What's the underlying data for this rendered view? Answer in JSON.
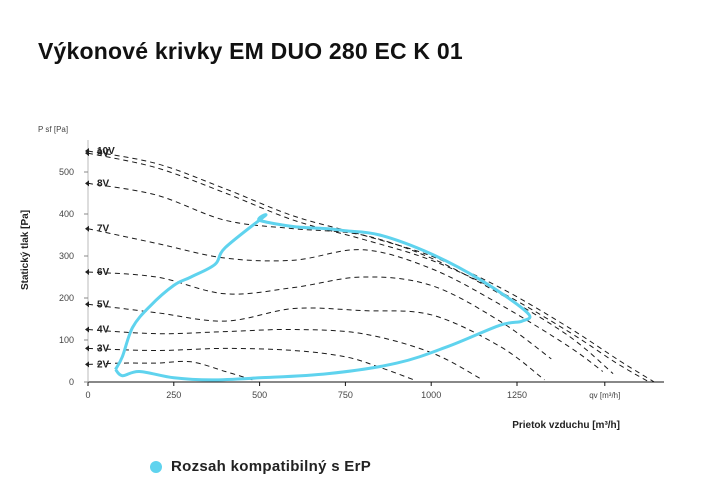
{
  "title": "Výkonové krivky EM DUO 280 EC K 01",
  "chart_data": {
    "type": "line",
    "y_unit_label": "P sf [Pa]",
    "ylabel": "Statický tlak [Pa]",
    "x_unit_label": "qv [m³/h]",
    "xlabel": "Prietok vzduchu [m³/h]",
    "xlim": [
      0,
      1700
    ],
    "ylim": [
      0,
      560
    ],
    "x_ticks": [
      0,
      250,
      500,
      750,
      1000,
      1250
    ],
    "y_ticks": [
      0,
      100,
      200,
      300,
      400,
      500
    ],
    "grid": false,
    "series": [
      {
        "name": "10V",
        "style": "dashed",
        "x": [
          0,
          200,
          400,
          600,
          800,
          1000,
          1200,
          1400,
          1550,
          1650
        ],
        "y": [
          550,
          520,
          460,
          395,
          350,
          300,
          225,
          130,
          50,
          0
        ]
      },
      {
        "name": "9V",
        "style": "dashed",
        "x": [
          0,
          200,
          400,
          600,
          800,
          1000,
          1200,
          1400,
          1540,
          1635
        ],
        "y": [
          545,
          510,
          450,
          385,
          340,
          290,
          215,
          120,
          45,
          0
        ]
      },
      {
        "name": "8V",
        "style": "dashed",
        "x": [
          0,
          200,
          400,
          600,
          800,
          1000,
          1200,
          1400,
          1530
        ],
        "y": [
          473,
          445,
          385,
          365,
          350,
          295,
          210,
          110,
          20
        ]
      },
      {
        "name": "7V",
        "style": "dashed",
        "x": [
          0,
          200,
          400,
          600,
          800,
          1000,
          1200,
          1400,
          1500
        ],
        "y": [
          365,
          330,
          295,
          290,
          315,
          270,
          185,
          85,
          25
        ]
      },
      {
        "name": "6V",
        "style": "dashed",
        "x": [
          0,
          200,
          400,
          600,
          800,
          1000,
          1200,
          1350
        ],
        "y": [
          262,
          250,
          210,
          225,
          250,
          230,
          145,
          55
        ]
      },
      {
        "name": "5V",
        "style": "dashed",
        "x": [
          0,
          200,
          400,
          600,
          800,
          1000,
          1200,
          1330
        ],
        "y": [
          185,
          165,
          145,
          175,
          170,
          160,
          85,
          5
        ]
      },
      {
        "name": "4V",
        "style": "dashed",
        "x": [
          0,
          200,
          400,
          600,
          800,
          1000,
          1150
        ],
        "y": [
          125,
          115,
          120,
          125,
          115,
          70,
          5
        ]
      },
      {
        "name": "3V",
        "style": "dashed",
        "x": [
          0,
          200,
          400,
          600,
          750,
          850,
          950
        ],
        "y": [
          80,
          75,
          80,
          75,
          60,
          35,
          5
        ]
      },
      {
        "name": "2V",
        "style": "dashed",
        "x": [
          0,
          100,
          200,
          300,
          400,
          480
        ],
        "y": [
          42,
          45,
          45,
          48,
          25,
          5
        ]
      }
    ],
    "erp_range": {
      "name": "Rozsah kompatibilný s ErP",
      "color": "#5fd3ee",
      "x": [
        80,
        100,
        150,
        250,
        360,
        500,
        700,
        900,
        1050,
        1200,
        1265,
        1280,
        1150,
        1000,
        850,
        750,
        700,
        600,
        500,
        515,
        400,
        370,
        300,
        250,
        180,
        130,
        100,
        80
      ],
      "y": [
        30,
        15,
        25,
        10,
        5,
        10,
        20,
        45,
        85,
        135,
        145,
        165,
        240,
        305,
        350,
        360,
        365,
        370,
        385,
        395,
        320,
        280,
        250,
        230,
        180,
        130,
        60,
        30
      ]
    },
    "label_colors": {
      "text": "#222222",
      "dash": "#1a1a1a",
      "axis": "#111111"
    }
  },
  "legend": {
    "label": "Rozsah kompatibilný s ErP",
    "color": "#5fd3ee"
  }
}
